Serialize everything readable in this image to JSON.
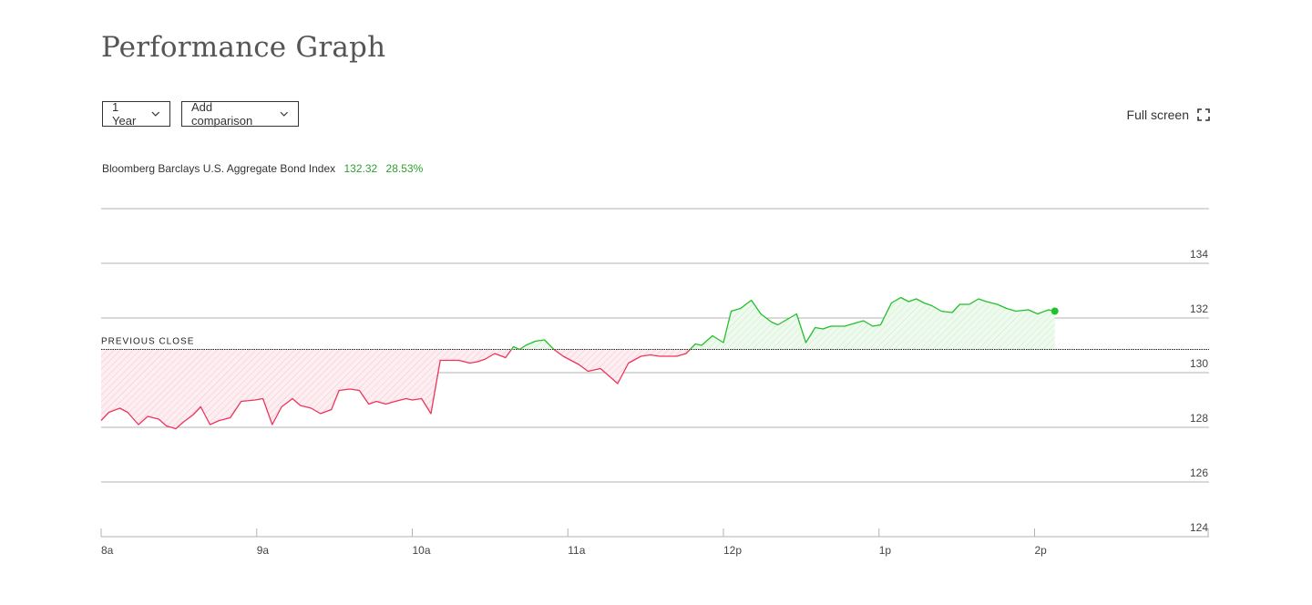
{
  "header": {
    "title": "Performance Graph"
  },
  "controls": {
    "range_label": "1 Year",
    "compare_label": "Add comparison",
    "fullscreen_label": "Full screen"
  },
  "index": {
    "name": "Bloomberg Barclays U.S. Aggregate Bond Index",
    "value": "132.32",
    "change": "28.53%"
  },
  "colors": {
    "up": "#22c02b",
    "down": "#f0335a",
    "grid": "#b3b3b3",
    "text": "#333333"
  },
  "icons": {
    "dropdown": "chevron-down-icon",
    "fullscreen": "fullscreen-icon"
  },
  "chart_data": {
    "type": "line",
    "title": "",
    "xlabel": "",
    "ylabel": "",
    "ylim": [
      124,
      136
    ],
    "yticks": [
      124,
      126,
      128,
      130,
      132,
      134
    ],
    "ytick_labels": [
      "124",
      "126",
      "128",
      "130",
      "132",
      "134"
    ],
    "x_domain_hours": [
      8,
      15.1
    ],
    "xtick_hours": [
      8,
      9,
      10,
      11,
      12,
      13,
      14
    ],
    "xtick_labels": [
      "8a",
      "9a",
      "10a",
      "11a",
      "12p",
      "1p",
      "2p"
    ],
    "reference": {
      "label": "PREVIOUS CLOSE",
      "value": 130.85
    },
    "grid": true,
    "series": [
      {
        "name": "Bloomberg Barclays U.S. Aggregate Bond Index",
        "x": [
          8.0,
          8.05,
          8.12,
          8.17,
          8.24,
          8.3,
          8.37,
          8.42,
          8.48,
          8.53,
          8.59,
          8.64,
          8.7,
          8.76,
          8.83,
          8.9,
          8.99,
          9.04,
          9.1,
          9.16,
          9.23,
          9.28,
          9.35,
          9.41,
          9.48,
          9.53,
          9.6,
          9.66,
          9.72,
          9.77,
          9.83,
          9.89,
          9.96,
          10.0,
          10.06,
          10.12,
          10.18,
          10.24,
          10.3,
          10.37,
          10.42,
          10.47,
          10.53,
          10.6,
          10.65,
          10.69,
          10.73,
          10.79,
          10.85,
          10.91,
          10.97,
          11.02,
          11.07,
          11.13,
          11.21,
          11.27,
          11.32,
          11.39,
          11.47,
          11.53,
          11.59,
          11.65,
          11.7,
          11.76,
          11.82,
          11.86,
          11.93,
          12.0,
          12.05,
          12.11,
          12.18,
          12.24,
          12.31,
          12.35,
          12.41,
          12.47,
          12.53,
          12.59,
          12.64,
          12.69,
          12.74,
          12.78,
          12.84,
          12.9,
          12.96,
          13.01,
          13.08,
          13.14,
          13.19,
          13.24,
          13.29,
          13.34,
          13.4,
          13.47,
          13.52,
          13.58,
          13.64,
          13.69,
          13.76,
          13.82,
          13.88,
          13.96,
          14.02,
          14.09,
          14.13
        ],
        "y": [
          128.25,
          128.55,
          128.7,
          128.55,
          128.1,
          128.4,
          128.3,
          128.05,
          127.95,
          128.2,
          128.45,
          128.75,
          128.1,
          128.25,
          128.35,
          128.95,
          129.0,
          129.05,
          128.1,
          128.75,
          129.05,
          128.8,
          128.7,
          128.5,
          128.65,
          129.35,
          129.4,
          129.35,
          128.85,
          128.95,
          128.85,
          128.95,
          129.05,
          129.0,
          129.05,
          128.5,
          130.45,
          130.45,
          130.45,
          130.35,
          130.4,
          130.5,
          130.7,
          130.55,
          130.95,
          130.85,
          131.0,
          131.15,
          131.2,
          130.85,
          130.6,
          130.45,
          130.3,
          130.05,
          130.15,
          129.85,
          129.6,
          130.35,
          130.6,
          130.65,
          130.6,
          130.6,
          130.6,
          130.7,
          131.05,
          131.0,
          131.35,
          131.1,
          132.25,
          132.35,
          132.65,
          132.15,
          131.85,
          131.75,
          131.95,
          132.15,
          131.1,
          131.65,
          131.6,
          131.7,
          131.7,
          131.7,
          131.8,
          131.9,
          131.7,
          131.75,
          132.55,
          132.75,
          132.6,
          132.7,
          132.55,
          132.45,
          132.25,
          132.2,
          132.5,
          132.5,
          132.7,
          132.6,
          132.5,
          132.35,
          132.25,
          132.3,
          132.15,
          132.3,
          132.25
        ]
      }
    ]
  }
}
